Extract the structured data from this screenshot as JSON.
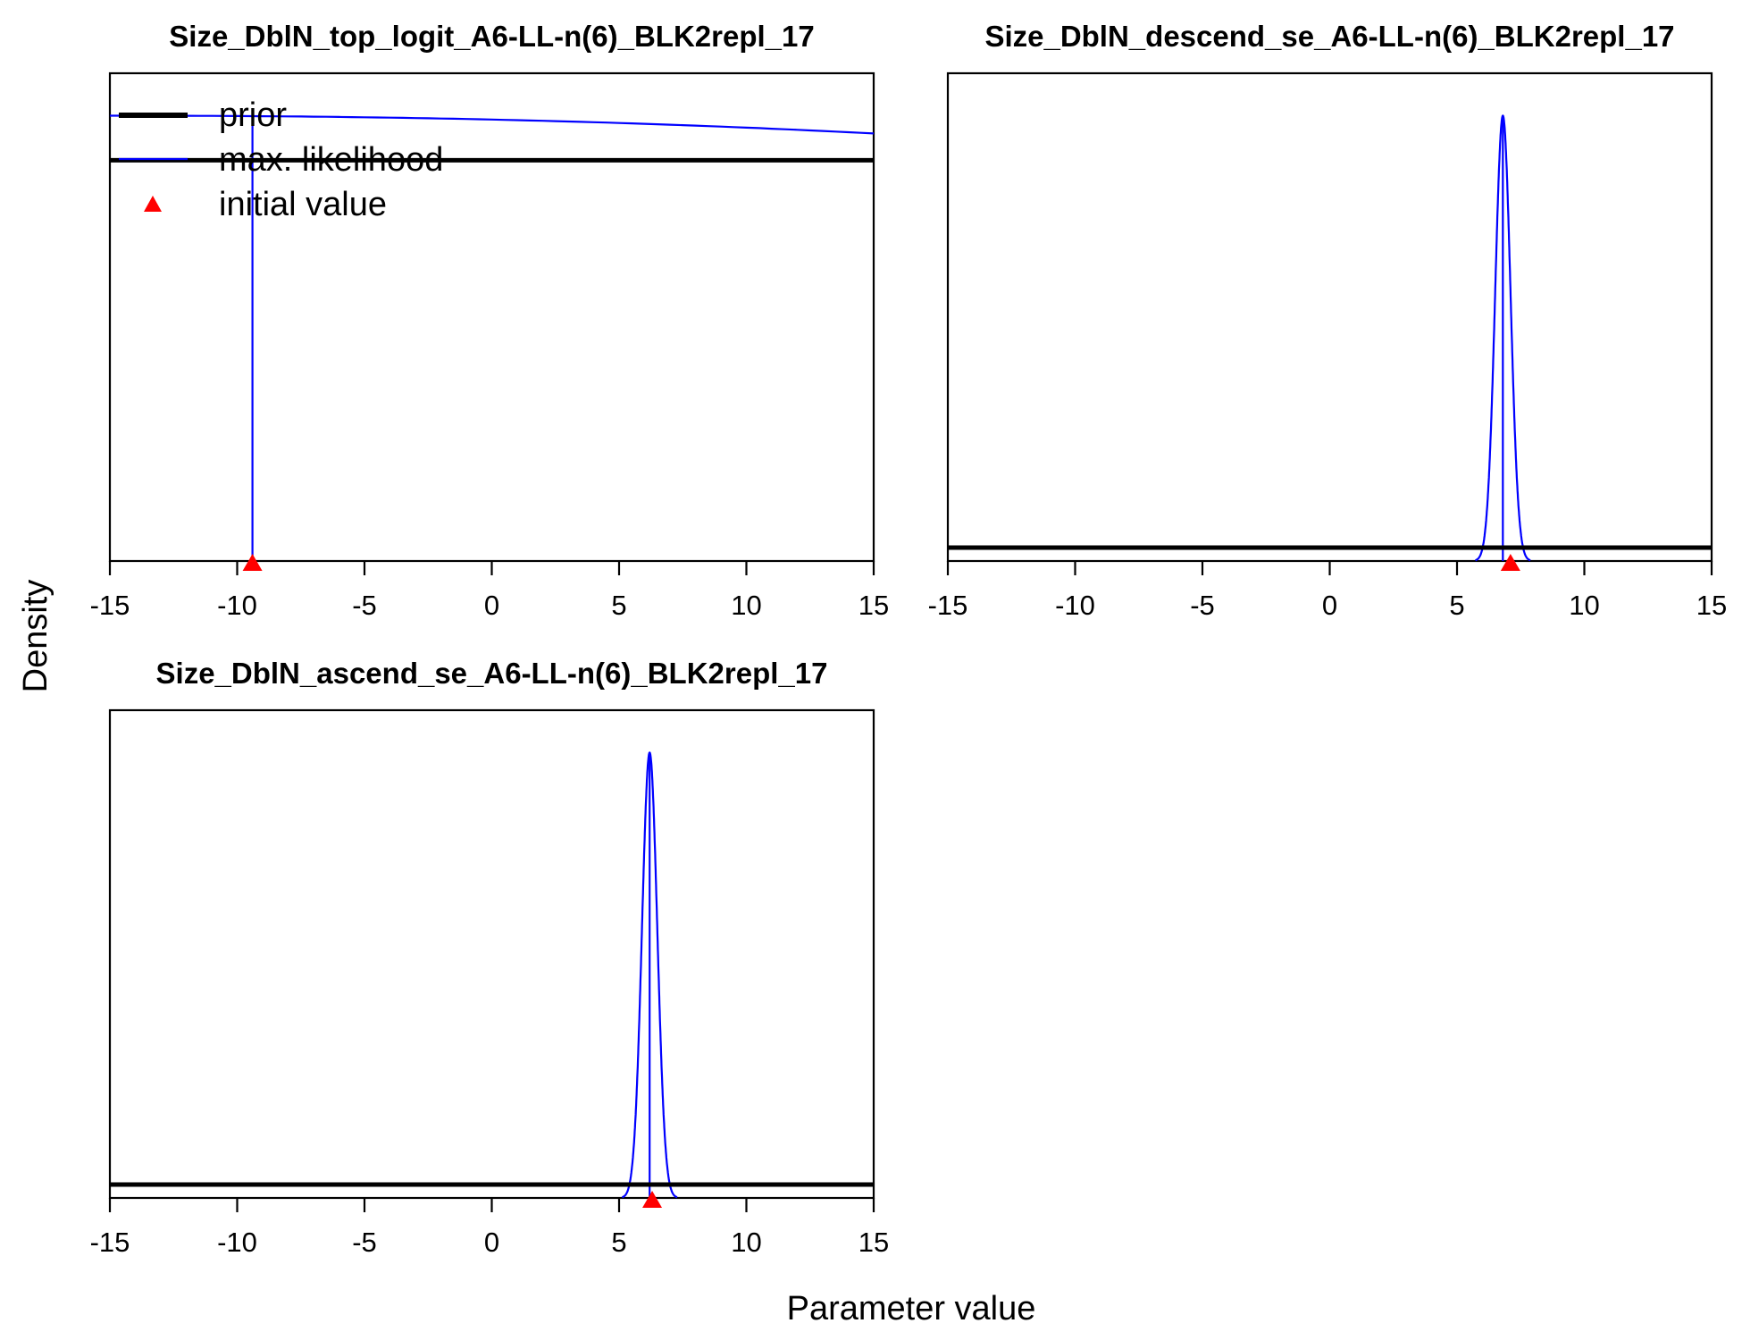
{
  "figure": {
    "ylabel": "Density",
    "xlabel": "Parameter value"
  },
  "legend": {
    "placement": "top-left of first panel",
    "items": [
      {
        "label": "prior",
        "style": "thick black line",
        "color": "#000000"
      },
      {
        "label": "max. likelihood",
        "style": "thin blue line",
        "color": "#0000ff"
      },
      {
        "label": "initial value",
        "style": "red triangle",
        "color": "#ff0000"
      }
    ]
  },
  "chart_data": [
    {
      "type": "line",
      "title": "Size_DblN_top_logit_A6-LL-n(6)_BLK2repl_17",
      "xlim": [
        -15,
        15
      ],
      "xticks": [
        -15,
        -10,
        -5,
        0,
        5,
        10,
        15
      ],
      "grid": false,
      "prior": {
        "type": "normal",
        "mean": 0,
        "sd": 5,
        "level": 0.9
      },
      "max_likelihood": {
        "kind": "at_bound",
        "mle": -9.4,
        "start": 1.0,
        "end": 0.96
      },
      "initial_value": -9.4
    },
    {
      "type": "line",
      "title": "Size_DblN_descend_se_A6-LL-n(6)_BLK2repl_17",
      "xlim": [
        -15,
        15
      ],
      "xticks": [
        -15,
        -10,
        -5,
        0,
        5,
        10,
        15
      ],
      "grid": false,
      "prior": {
        "type": "uniform",
        "level": 0.03
      },
      "max_likelihood": {
        "kind": "normal",
        "mean": 6.8,
        "sd": 0.3
      },
      "initial_value": 7.1
    },
    {
      "type": "line",
      "title": "Size_DblN_ascend_se_A6-LL-n(6)_BLK2repl_17",
      "xlim": [
        -15,
        15
      ],
      "xticks": [
        -15,
        -10,
        -5,
        0,
        5,
        10,
        15
      ],
      "grid": false,
      "prior": {
        "type": "uniform",
        "level": 0.03
      },
      "max_likelihood": {
        "kind": "normal",
        "mean": 6.2,
        "sd": 0.3
      },
      "initial_value": 6.3
    }
  ]
}
